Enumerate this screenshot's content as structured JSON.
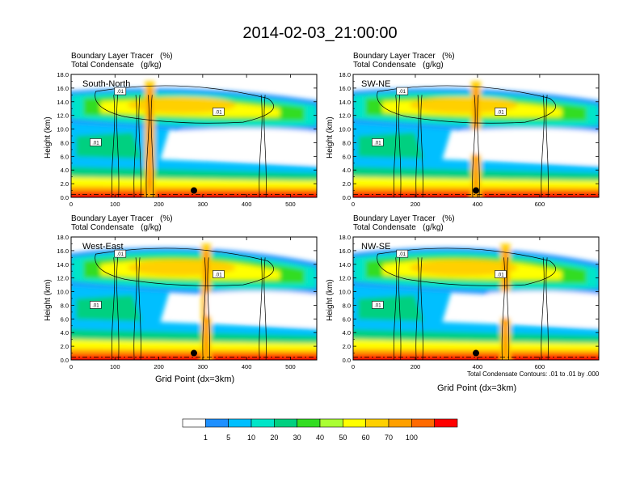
{
  "figure": {
    "title": "2014-02-03_21:00:00",
    "subtitle_line1": "Boundary Layer Tracer   (%)",
    "subtitle_line2": "Total Condensate   (g/kg)",
    "ylabel": "Height (km)",
    "xlabel": "Grid Point (dx=3km)",
    "contour_note": "Total Condensate Contours: .01 to .01 by .000",
    "contour_label": ".01"
  },
  "colorbar": {
    "levels": [
      "1",
      "5",
      "10",
      "20",
      "30",
      "40",
      "50",
      "60",
      "70",
      "100"
    ],
    "colors": [
      "#ffffff",
      "#1e90ff",
      "#00bfff",
      "#00e5c8",
      "#00d080",
      "#33dd22",
      "#aaff33",
      "#ffff00",
      "#ffd000",
      "#ffa000",
      "#ff6a00",
      "#ff0000"
    ]
  },
  "chart_data": [
    {
      "type": "heatmap",
      "panel_label": "South-North",
      "title": "Boundary Layer Tracer   (%)",
      "subtitle": "Total Condensate   (g/kg)",
      "ylabel": "Height (km)",
      "xlabel": "",
      "xlim": [
        0,
        560
      ],
      "ylim": [
        0,
        18
      ],
      "xticks": [
        "0",
        "100",
        "200",
        "300",
        "400",
        "500"
      ],
      "yticks": [
        "0.0",
        "2.0",
        "4.0",
        "6.0",
        "8.0",
        "10.0",
        "12.0",
        "14.0",
        "16.0",
        "18.0"
      ],
      "marker_point": {
        "x": 280,
        "y": 1
      }
    },
    {
      "type": "heatmap",
      "panel_label": "SW-NE",
      "title": "Boundary Layer Tracer   (%)",
      "subtitle": "Total Condensate   (g/kg)",
      "ylabel": "Height (km)",
      "xlabel": "",
      "xlim": [
        0,
        790
      ],
      "ylim": [
        0,
        18
      ],
      "xticks": [
        "0",
        "200",
        "400",
        "600"
      ],
      "yticks": [
        "0.0",
        "2.0",
        "4.0",
        "6.0",
        "8.0",
        "10.0",
        "12.0",
        "14.0",
        "16.0",
        "18.0"
      ],
      "marker_point": {
        "x": 395,
        "y": 1
      }
    },
    {
      "type": "heatmap",
      "panel_label": "West-East",
      "title": "Boundary Layer Tracer   (%)",
      "subtitle": "Total Condensate   (g/kg)",
      "ylabel": "Height (km)",
      "xlabel": "Grid Point (dx=3km)",
      "xlim": [
        0,
        560
      ],
      "ylim": [
        0,
        18
      ],
      "xticks": [
        "0",
        "100",
        "200",
        "300",
        "400",
        "500"
      ],
      "yticks": [
        "0.0",
        "2.0",
        "4.0",
        "6.0",
        "8.0",
        "10.0",
        "12.0",
        "14.0",
        "16.0",
        "18.0"
      ],
      "marker_point": {
        "x": 280,
        "y": 1
      }
    },
    {
      "type": "heatmap",
      "panel_label": "NW-SE",
      "title": "Boundary Layer Tracer   (%)",
      "subtitle": "Total Condensate   (g/kg)",
      "ylabel": "Height (km)",
      "xlabel": "Grid Point (dx=3km)",
      "xlim": [
        0,
        790
      ],
      "ylim": [
        0,
        18
      ],
      "xticks": [
        "0",
        "200",
        "400",
        "600"
      ],
      "yticks": [
        "0.0",
        "2.0",
        "4.0",
        "6.0",
        "8.0",
        "10.0",
        "12.0",
        "14.0",
        "16.0",
        "18.0"
      ],
      "marker_point": {
        "x": 395,
        "y": 1
      }
    }
  ]
}
